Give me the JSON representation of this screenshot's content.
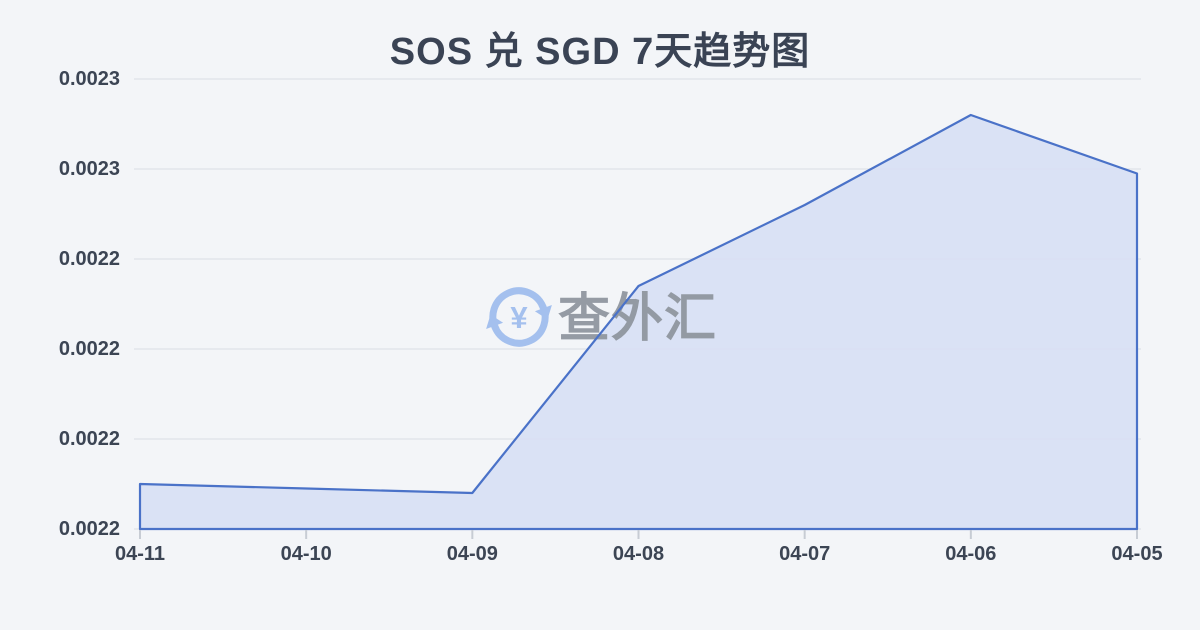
{
  "page_title": "SOS 兑 SGD 7天趋势图",
  "watermark": {
    "text": "查外汇",
    "symbol": "¥"
  },
  "colors": {
    "background": "#f3f5f8",
    "title": "#3a4354",
    "axis_label": "#3c4554",
    "gridline": "#e4e7ec",
    "line": "#4a72c8",
    "area_fill": "#d8dff4",
    "tick": "#c7ccd4",
    "watermark_text": "#8e949d",
    "watermark_icon": "#a4c0ee"
  },
  "chart_data": {
    "type": "area",
    "title": "SOS 兑 SGD 7天趋势图",
    "categories": [
      "04-11",
      "04-10",
      "04-09",
      "04-08",
      "04-07",
      "04-06",
      "04-05"
    ],
    "values": [
      0.00221,
      0.002209,
      0.002208,
      0.002254,
      0.002272,
      0.002292,
      0.002279
    ],
    "xlabel": "",
    "ylabel": "",
    "ylim": [
      0.0022,
      0.0023
    ],
    "y_tick_labels": [
      "0.0023",
      "0.0023",
      "0.0022",
      "0.0022",
      "0.0022",
      "0.0022"
    ],
    "grid": true,
    "legend_position": "none",
    "x_axis_ticks": true
  }
}
